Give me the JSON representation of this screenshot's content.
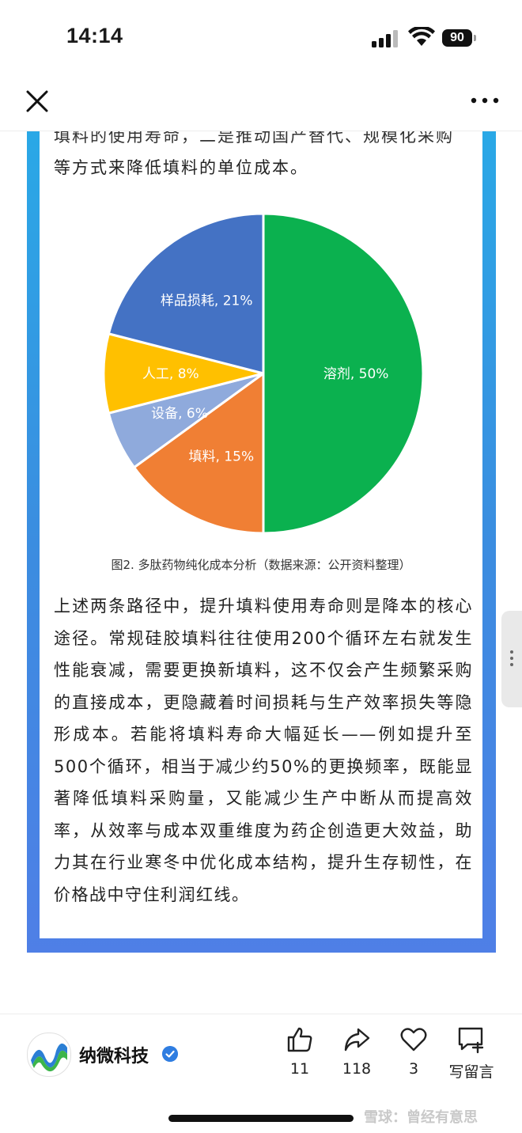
{
  "status_bar": {
    "time": "14:14",
    "battery": "90"
  },
  "article": {
    "para_top_line1": "填料的使用寿命，二是推动国产替代、规模化采购",
    "para_top_line2": "等方式来降低填料的单位成本。",
    "caption": "图2. 多肽药物纯化成本分析（数据来源：公开资料整理）",
    "para_main": "上述两条路径中，提升填料使用寿命则是降本的核心途径。常规硅胶填料往往使用200个循环左右就发生性能衰减，需要更换新填料，这不仅会产生频繁采购的直接成本，更隐藏着时间损耗与生产效率损失等隐形成本。若能将填料寿命大幅延长——例如提升至500个循环，相当于减少约50%的更换频率，既能显著降低填料采购量，又能减少生产中断从而提高效率，从效率与成本双重维度为药企创造更大效益，助力其在行业寒冬中优化成本结构，提升生存韧性，在价格战中守住利润红线。"
  },
  "chart_data": {
    "type": "pie",
    "title": "",
    "categories": [
      "溶剂",
      "填料",
      "设备",
      "人工",
      "样品损耗"
    ],
    "values": [
      50,
      15,
      6,
      8,
      21
    ],
    "labels": [
      "溶剂, 50%",
      "填料, 15%",
      "设备, 6%",
      "人工, 8%",
      "样品损耗, 21%"
    ],
    "colors": [
      "#0bb14f",
      "#f07f34",
      "#8faadc",
      "#ffc000",
      "#4472c4"
    ],
    "start": "12 o'clock, clockwise",
    "legend": "none"
  },
  "footer": {
    "author": "纳微科技",
    "actions": [
      {
        "icon": "thumbs-up-icon",
        "count": "11"
      },
      {
        "icon": "share-icon",
        "count": "118"
      },
      {
        "icon": "heart-icon",
        "count": "3"
      },
      {
        "icon": "comment-icon",
        "count": "写留言"
      }
    ],
    "watermark": "雪球：曾经有意思"
  },
  "colors": {
    "frame_top": "#2aa8e6",
    "frame_bottom": "#4f7fe6",
    "verified": "#2f7de1"
  }
}
